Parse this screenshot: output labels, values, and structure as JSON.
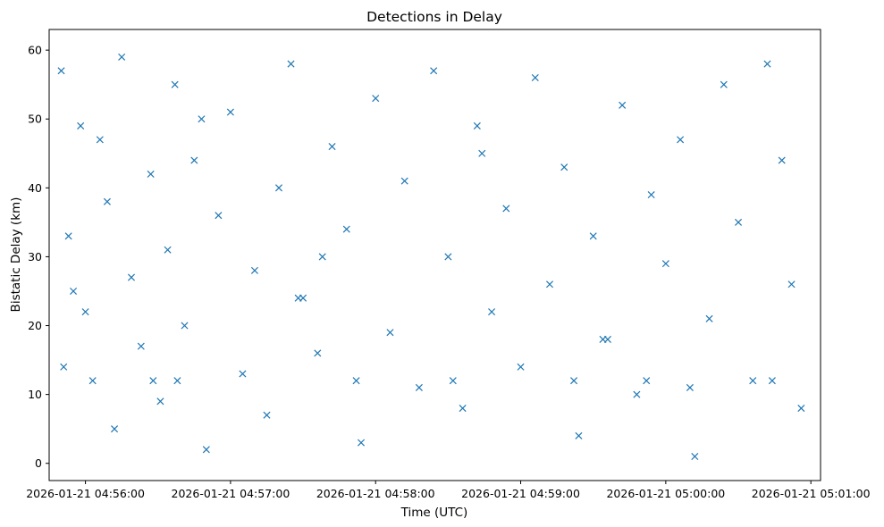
{
  "chart_data": {
    "type": "scatter",
    "title": "Detections in Delay",
    "xlabel": "Time (UTC)",
    "ylabel": "Bistatic Delay (km)",
    "marker": "x",
    "color": "#1f77b4",
    "grid": false,
    "legend": "none",
    "xlim": [
      "2026-01-21 04:55:45",
      "2026-01-21 05:01:04"
    ],
    "ylim": [
      -2.5,
      63
    ],
    "x_ticks": [
      "2026-01-21 04:56:00",
      "2026-01-21 04:57:00",
      "2026-01-21 04:58:00",
      "2026-01-21 04:59:00",
      "2026-01-21 05:00:00",
      "2026-01-21 05:01:00"
    ],
    "y_ticks": [
      0,
      10,
      20,
      30,
      40,
      50,
      60
    ],
    "series": [
      {
        "x": [
          "2026-01-21 04:55:50",
          "2026-01-21 04:55:51",
          "2026-01-21 04:55:53",
          "2026-01-21 04:55:55",
          "2026-01-21 04:55:58",
          "2026-01-21 04:56:00",
          "2026-01-21 04:56:03",
          "2026-01-21 04:56:06",
          "2026-01-21 04:56:09",
          "2026-01-21 04:56:12",
          "2026-01-21 04:56:15",
          "2026-01-21 04:56:19",
          "2026-01-21 04:56:23",
          "2026-01-21 04:56:27",
          "2026-01-21 04:56:31",
          "2026-01-21 04:56:34",
          "2026-01-21 04:56:37",
          "2026-01-21 04:56:41",
          "2026-01-21 04:56:45",
          "2026-01-21 04:56:50",
          "2026-01-21 04:56:55",
          "2026-01-21 04:57:00",
          "2026-01-21 04:57:05",
          "2026-01-21 04:57:10",
          "2026-01-21 04:57:15",
          "2026-01-21 04:57:20",
          "2026-01-21 04:57:25",
          "2026-01-21 04:57:30",
          "2026-01-21 04:57:36",
          "2026-01-21 04:57:42",
          "2026-01-21 04:57:48",
          "2026-01-21 04:57:54",
          "2026-01-21 04:58:00",
          "2026-01-21 04:58:06",
          "2026-01-21 04:58:12",
          "2026-01-21 04:58:18",
          "2026-01-21 04:58:24",
          "2026-01-21 04:58:30",
          "2026-01-21 04:58:36",
          "2026-01-21 04:58:42",
          "2026-01-21 04:58:48",
          "2026-01-21 04:58:54",
          "2026-01-21 04:59:00",
          "2026-01-21 04:59:06",
          "2026-01-21 04:59:12",
          "2026-01-21 04:59:18",
          "2026-01-21 04:59:24",
          "2026-01-21 04:59:30",
          "2026-01-21 04:59:36",
          "2026-01-21 04:59:42",
          "2026-01-21 04:59:48",
          "2026-01-21 04:59:54",
          "2026-01-21 05:00:00",
          "2026-01-21 05:00:06",
          "2026-01-21 05:00:12",
          "2026-01-21 05:00:18",
          "2026-01-21 05:00:24",
          "2026-01-21 05:00:30",
          "2026-01-21 05:00:36",
          "2026-01-21 05:00:42",
          "2026-01-21 05:00:48",
          "2026-01-21 05:00:52",
          "2026-01-21 05:00:56",
          "2026-01-21 04:56:28",
          "2026-01-21 04:56:38",
          "2026-01-21 04:57:28",
          "2026-01-21 04:57:52",
          "2026-01-21 04:58:32",
          "2026-01-21 04:59:22",
          "2026-01-21 04:59:52",
          "2026-01-21 05:00:44",
          "2026-01-21 05:00:10",
          "2026-01-21 04:56:48",
          "2026-01-21 04:57:38",
          "2026-01-21 04:58:44",
          "2026-01-21 04:59:34"
        ],
        "y": [
          57,
          14,
          33,
          25,
          49,
          22,
          12,
          47,
          38,
          5,
          59,
          27,
          17,
          42,
          9,
          31,
          55,
          20,
          44,
          2,
          36,
          51,
          13,
          28,
          7,
          40,
          58,
          24,
          16,
          46,
          34,
          3,
          53,
          19,
          41,
          11,
          57,
          30,
          8,
          49,
          22,
          37,
          14,
          56,
          26,
          43,
          4,
          33,
          18,
          52,
          10,
          39,
          29,
          47,
          1,
          21,
          55,
          35,
          12,
          58,
          44,
          26,
          8,
          12,
          12,
          24,
          12,
          12,
          12,
          12,
          12,
          11,
          50,
          30,
          45,
          18
        ]
      }
    ]
  }
}
